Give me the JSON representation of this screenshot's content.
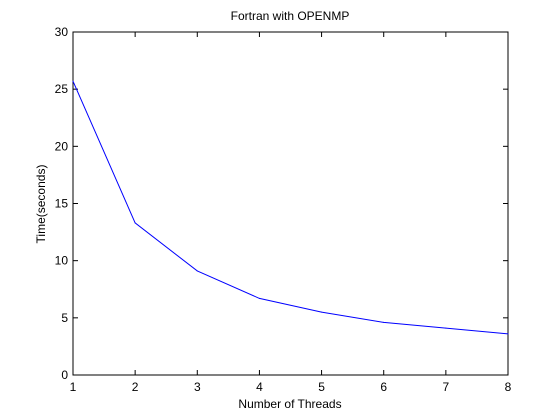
{
  "chart_data": {
    "type": "line",
    "title": "Fortran with OPENMP",
    "xlabel": "Number of Threads",
    "ylabel": "Time(seconds)",
    "xlim": [
      1,
      8
    ],
    "ylim": [
      0,
      30
    ],
    "xticks": [
      1,
      2,
      3,
      4,
      5,
      6,
      7,
      8
    ],
    "yticks": [
      0,
      5,
      10,
      15,
      20,
      25,
      30
    ],
    "grid": false,
    "series": [
      {
        "x": [
          1,
          2,
          3,
          4,
          5,
          6,
          7,
          8
        ],
        "values": [
          25.7,
          13.3,
          9.1,
          6.7,
          5.5,
          4.6,
          4.1,
          3.6
        ],
        "color": "#0000ff"
      }
    ]
  }
}
